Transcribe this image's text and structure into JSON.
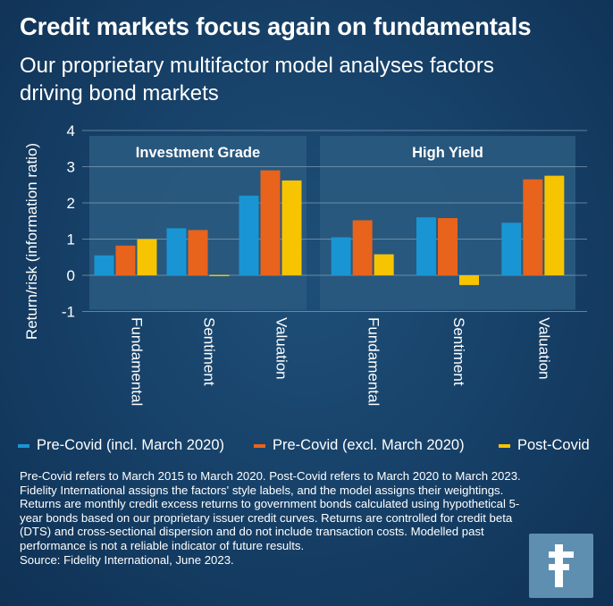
{
  "title": "Credit markets focus again on fundamentals",
  "subtitle": "Our proprietary multifactor model analyses factors driving bond markets",
  "colors": {
    "pre_covid_incl": "#1a95d4",
    "pre_covid_excl": "#e8631c",
    "post_covid": "#f6c400",
    "panel": "#2a5a80",
    "grid": "#9fb7ca"
  },
  "chart_data": {
    "type": "bar",
    "ylabel": "Return/risk (information ratio)",
    "ylim": [
      -1,
      4
    ],
    "yticks": [
      "4",
      "3",
      "2",
      "1",
      "0",
      "-1"
    ],
    "ytick_values": [
      4,
      3,
      2,
      1,
      0,
      -1
    ],
    "panels": [
      {
        "title": "Investment Grade",
        "categories": [
          "Fundamental",
          "Sentiment",
          "Valuation"
        ],
        "series": [
          {
            "name": "Pre-Covid (incl. March 2020)",
            "values": [
              0.55,
              1.3,
              2.2
            ]
          },
          {
            "name": "Pre-Covid (excl. March 2020)",
            "values": [
              0.82,
              1.25,
              2.9
            ]
          },
          {
            "name": "Post-Covid",
            "values": [
              1.0,
              -0.03,
              2.62
            ]
          }
        ]
      },
      {
        "title": "High Yield",
        "categories": [
          "Fundamental",
          "Sentiment",
          "Valuation"
        ],
        "series": [
          {
            "name": "Pre-Covid (incl. March 2020)",
            "values": [
              1.05,
              1.6,
              1.45
            ]
          },
          {
            "name": "Pre-Covid (excl. March 2020)",
            "values": [
              1.52,
              1.58,
              2.65
            ]
          },
          {
            "name": "Post-Covid",
            "values": [
              0.58,
              -0.27,
              2.75
            ]
          }
        ]
      }
    ],
    "legend": [
      "Pre-Covid (incl. March 2020)",
      "Pre-Covid (excl. March 2020)",
      "Post-Covid"
    ]
  },
  "footnote": "Pre-Covid refers to March 2015 to March 2020. Post-Covid refers to March 2020 to March 2023. Fidelity International assigns the factors' style labels, and the model assigns their weightings. Returns are monthly credit excess returns to government bonds calculated using hypothetical 5-year bonds based on our proprietary issuer credit curves. Returns are controlled for credit beta (DTS) and cross-sectional dispersion and do not include transaction costs. Modelled past performance is not a reliable indicator of future results.",
  "source": "Source: Fidelity International, June 2023.",
  "logo_icon": "fidelity-f-logo-icon"
}
